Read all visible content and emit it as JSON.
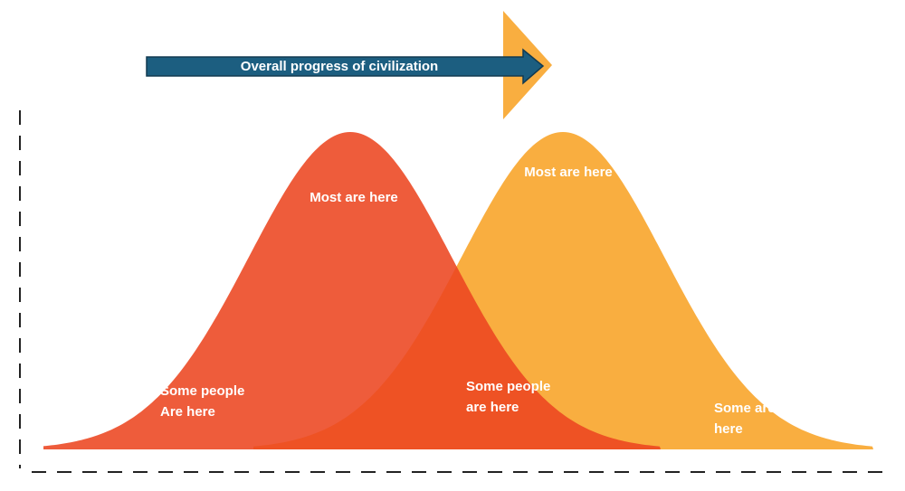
{
  "arrow": {
    "label": "Overall progress of civilization"
  },
  "curves": [
    {
      "peak_label": "Most are here",
      "left_label": [
        "Some people",
        "Are here"
      ],
      "right_label": [
        "Some people",
        "are here"
      ]
    },
    {
      "peak_label": "Most are here",
      "right_label": [
        "Some are",
        "here"
      ]
    }
  ]
}
